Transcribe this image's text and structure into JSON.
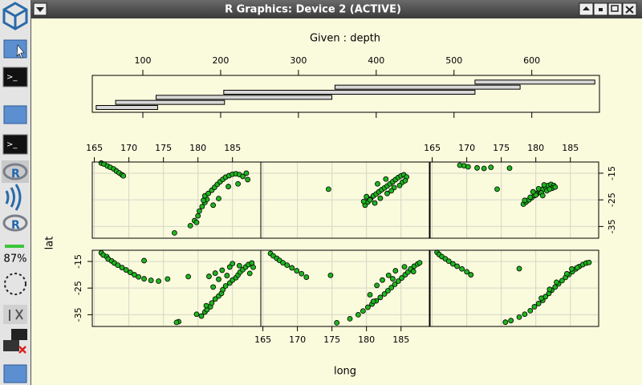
{
  "window": {
    "title": "R Graphics: Device 2 (ACTIVE)"
  },
  "taskbar": {
    "battery": "87%"
  },
  "chart_data": {
    "type": "coplot",
    "given_label": "Given : depth",
    "xlabel": "long",
    "ylabel": "lat",
    "color": "#1fb51f",
    "grid": true,
    "given": {
      "xlim": [
        35,
        687
      ],
      "xticks": [
        100,
        200,
        300,
        400,
        500,
        600
      ],
      "intervals": [
        [
          40,
          119
        ],
        [
          65,
          205
        ],
        [
          117,
          343
        ],
        [
          204,
          527
        ],
        [
          347,
          585
        ],
        [
          527,
          681
        ]
      ]
    },
    "xlim": [
      164.7,
      189.1
    ],
    "xticks": [
      165,
      170,
      175,
      180,
      185
    ],
    "ylim": [
      -39.4,
      -10.8
    ],
    "yticks": [
      -15,
      -25,
      -35
    ],
    "panels": [
      {
        "x": [
          166.0,
          166.3,
          166.8,
          167.0,
          167.5,
          167.9,
          168.4,
          169.0,
          169.6,
          170.2,
          170.8,
          171.4,
          172.2,
          173.2,
          174.3,
          175.6,
          172.2,
          178.6,
          177.2,
          176.9,
          179.8,
          180.5,
          181.0,
          181.3,
          181.8,
          182.0,
          182.5,
          183.0,
          183.4,
          183.6,
          184.0,
          184.6,
          185.0,
          185.5,
          185.8,
          186.1,
          186.5,
          186.9,
          187.3,
          187.8,
          188.0,
          186.0,
          184.6,
          183.5,
          182.5,
          181.6,
          181.2,
          182.2,
          183.0,
          184.2,
          185.0,
          187.5
        ],
        "y": [
          -11.8,
          -12.6,
          -13.2,
          -14.1,
          -14.8,
          -15.6,
          -16.4,
          -17.3,
          -18.2,
          -19.1,
          -20.0,
          -20.8,
          -21.5,
          -22.1,
          -22.4,
          -21.6,
          -14.7,
          -20.7,
          -37.6,
          -37.9,
          -34.8,
          -35.5,
          -34.0,
          -33.1,
          -32.0,
          -30.6,
          -29.1,
          -28.0,
          -27.0,
          -25.6,
          -24.2,
          -23.1,
          -22.0,
          -21.1,
          -20.1,
          -19.0,
          -18.1,
          -17.1,
          -16.2,
          -15.6,
          -17.2,
          -16.6,
          -17.1,
          -18.3,
          -19.4,
          -20.6,
          -31.6,
          -24.6,
          -21.7,
          -20.3,
          -15.8,
          -19.5
        ]
      },
      {
        "x": [
          166.1,
          166.5,
          167.0,
          167.4,
          167.9,
          168.5,
          169.2,
          169.9,
          170.6,
          171.3,
          174.8,
          175.7,
          177.6,
          178.8,
          179.5,
          180.2,
          180.8,
          181.4,
          182.0,
          182.6,
          183.1,
          183.6,
          184.1,
          184.6,
          185.1,
          185.6,
          186.0,
          186.4,
          186.9,
          187.4,
          187.7,
          185.5,
          184.2,
          183.2,
          182.3,
          181.5,
          180.5,
          186.8,
          183.8,
          181.0
        ],
        "y": [
          -12.0,
          -12.9,
          -13.8,
          -14.6,
          -15.5,
          -16.4,
          -17.4,
          -18.5,
          -19.6,
          -20.9,
          -20.2,
          -38.0,
          -36.5,
          -35.0,
          -33.6,
          -32.2,
          -31.0,
          -29.8,
          -28.5,
          -27.2,
          -26.0,
          -24.8,
          -23.6,
          -22.4,
          -21.2,
          -20.0,
          -19.0,
          -17.8,
          -16.8,
          -16.0,
          -15.5,
          -17.0,
          -18.5,
          -20.2,
          -22.0,
          -24.0,
          -27.5,
          -18.8,
          -21.5,
          -30.0
        ]
      },
      {
        "x": [
          165.7,
          166.0,
          166.4,
          166.9,
          167.4,
          168.0,
          168.6,
          169.3,
          170.0,
          170.6,
          175.6,
          176.4,
          177.6,
          178.4,
          179.2,
          179.8,
          180.4,
          181.0,
          181.4,
          181.9,
          182.3,
          182.8,
          183.3,
          183.8,
          184.3,
          184.8,
          185.3,
          185.8,
          186.3,
          186.8,
          187.3,
          187.7,
          186.0,
          184.5,
          183.0,
          182.0,
          180.8,
          185.2,
          177.6
        ],
        "y": [
          -11.6,
          -12.4,
          -13.2,
          -14.0,
          -14.9,
          -15.9,
          -16.8,
          -17.8,
          -18.9,
          -20.0,
          -37.8,
          -37.2,
          -35.9,
          -34.8,
          -33.5,
          -32.0,
          -30.8,
          -29.6,
          -28.2,
          -27.0,
          -25.8,
          -24.6,
          -23.4,
          -22.2,
          -21.0,
          -19.9,
          -18.8,
          -17.8,
          -16.9,
          -16.2,
          -15.6,
          -15.4,
          -17.3,
          -19.6,
          -22.8,
          -25.5,
          -28.8,
          -17.8,
          -17.7
        ]
      },
      {
        "x": [
          166.0,
          166.4,
          166.9,
          167.3,
          167.8,
          168.2,
          168.6,
          169.0,
          169.2,
          176.6,
          178.9,
          179.5,
          180.0,
          180.2,
          180.6,
          181.0,
          181.3,
          181.0,
          180.8,
          181.5,
          182.0,
          182.4,
          182.8,
          183.2,
          183.6,
          184.0,
          184.5,
          185.0,
          185.5,
          186.0,
          186.5,
          187.0,
          187.2,
          185.8,
          184.4,
          183.0,
          182.2,
          179.8
        ],
        "y": [
          -11.2,
          -11.6,
          -12.3,
          -12.8,
          -13.4,
          -14.2,
          -14.9,
          -15.6,
          -16.0,
          -37.4,
          -34.7,
          -32.8,
          -31.0,
          -29.2,
          -27.5,
          -26.0,
          -24.8,
          -23.5,
          -25.2,
          -22.6,
          -21.4,
          -20.3,
          -19.2,
          -18.2,
          -17.3,
          -16.5,
          -15.9,
          -15.4,
          -15.2,
          -15.5,
          -16.2,
          -15.0,
          -17.4,
          -19.0,
          -20.0,
          -24.5,
          -27.0,
          -33.5
        ]
      },
      {
        "x": [
          174.5,
          179.8,
          180.2,
          180.6,
          181.0,
          181.4,
          181.8,
          182.2,
          182.6,
          183.0,
          183.4,
          183.8,
          184.2,
          184.6,
          185.0,
          185.4,
          185.8,
          185.2,
          184.0,
          183.0,
          182.0,
          181.2,
          180.5,
          180.0,
          179.6,
          182.8,
          184.8,
          181.6,
          183.6,
          185.6
        ],
        "y": [
          -21.0,
          -27.0,
          -25.8,
          -24.6,
          -23.5,
          -22.8,
          -22.0,
          -21.2,
          -20.5,
          -19.8,
          -19.0,
          -18.2,
          -17.4,
          -16.6,
          -16.0,
          -15.6,
          -16.4,
          -18.4,
          -20.4,
          -22.6,
          -24.4,
          -26.2,
          -25.0,
          -23.8,
          -25.6,
          -17.2,
          -19.6,
          -19.0,
          -21.6,
          -17.8
        ]
      },
      {
        "x": [
          169.0,
          169.6,
          170.2,
          171.5,
          172.5,
          173.5,
          176.2,
          174.4,
          178.2,
          178.6,
          179.0,
          179.4,
          179.8,
          180.2,
          180.6,
          181.0,
          181.4,
          181.8,
          182.2,
          182.6,
          182.4,
          181.6,
          180.8,
          180.0,
          179.2,
          178.4,
          181.2,
          182.0,
          180.4,
          179.6,
          181.0,
          182.8
        ],
        "y": [
          -12.0,
          -12.2,
          -12.6,
          -13.0,
          -13.2,
          -12.8,
          -13.1,
          -21.0,
          -26.6,
          -25.8,
          -25.0,
          -24.2,
          -23.4,
          -22.6,
          -21.8,
          -21.0,
          -20.2,
          -19.6,
          -19.2,
          -19.6,
          -20.6,
          -21.6,
          -22.4,
          -23.2,
          -24.0,
          -25.2,
          -19.4,
          -21.0,
          -20.8,
          -22.0,
          -23.4,
          -20.2
        ]
      }
    ]
  }
}
